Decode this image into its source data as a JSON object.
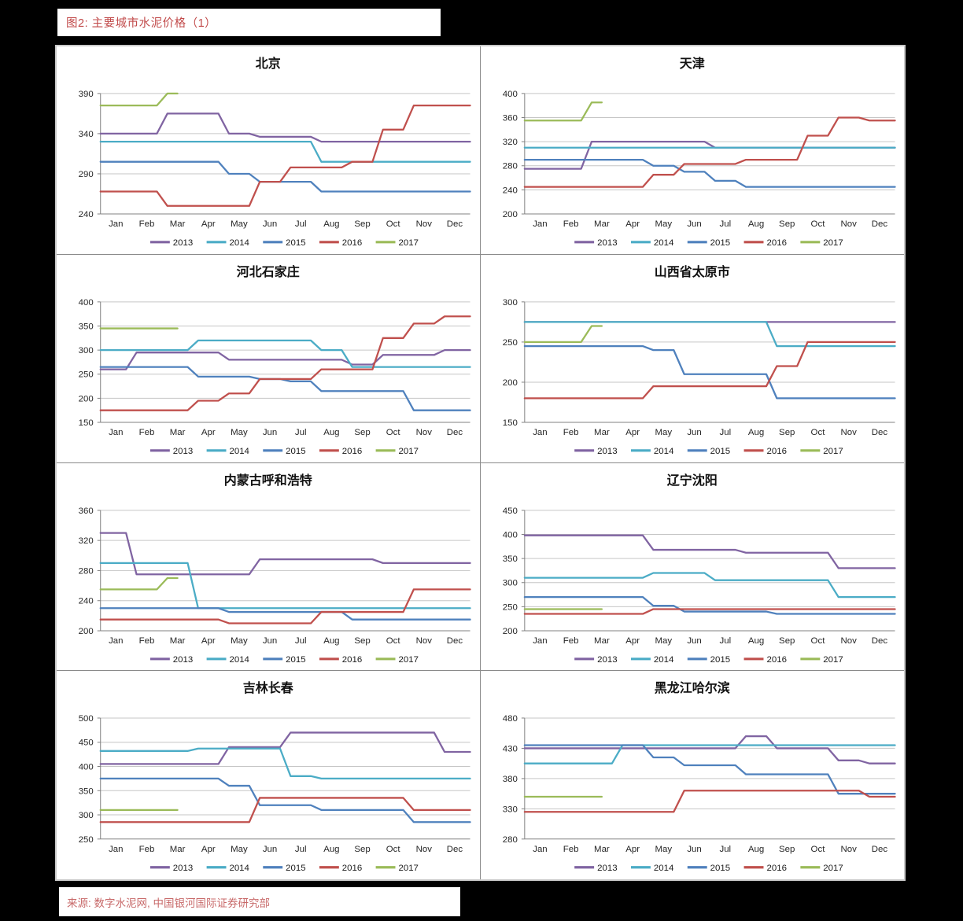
{
  "page": {
    "figure_title": "图2: 主要城市水泥价格（1）",
    "source": "来源: 数字水泥网, 中国银河国际证券研究部"
  },
  "months": [
    "Jan",
    "Feb",
    "Mar",
    "Apr",
    "May",
    "Jun",
    "Jul",
    "Aug",
    "Sep",
    "Oct",
    "Nov",
    "Dec"
  ],
  "years": [
    "2013",
    "2014",
    "2015",
    "2016",
    "2017"
  ],
  "colors": {
    "2013": "#8064A2",
    "2014": "#4BACC6",
    "2015": "#4F81BD",
    "2016": "#C0504D",
    "2017": "#9BBB59",
    "gridline": "#c6c6c6",
    "axis": "#808080",
    "tick_text": "#262626"
  },
  "chart_data": [
    {
      "type": "line",
      "title": "北京",
      "xlabel": "",
      "ylabel": "",
      "ylim": [
        240,
        390
      ],
      "yticks": [
        240,
        290,
        340,
        390
      ],
      "series": [
        {
          "name": "2013",
          "values": [
            340,
            340,
            365,
            365,
            340,
            336,
            336,
            330,
            330,
            330,
            330,
            330
          ]
        },
        {
          "name": "2014",
          "values": [
            330,
            330,
            330,
            330,
            330,
            330,
            330,
            305,
            305,
            305,
            305,
            305
          ]
        },
        {
          "name": "2015",
          "values": [
            305,
            305,
            305,
            305,
            290,
            280,
            280,
            268,
            268,
            268,
            268,
            268
          ]
        },
        {
          "name": "2016",
          "values": [
            268,
            268,
            250,
            250,
            250,
            280,
            298,
            298,
            305,
            345,
            375,
            375
          ]
        },
        {
          "name": "2017",
          "values": [
            375,
            375,
            390
          ]
        }
      ]
    },
    {
      "type": "line",
      "title": "天津",
      "xlabel": "",
      "ylabel": "",
      "ylim": [
        200,
        400
      ],
      "yticks": [
        200,
        240,
        280,
        320,
        360,
        400
      ],
      "series": [
        {
          "name": "2013",
          "values": [
            275,
            275,
            320,
            320,
            320,
            320,
            310,
            310,
            310,
            310,
            310,
            310
          ]
        },
        {
          "name": "2014",
          "values": [
            310,
            310,
            310,
            310,
            310,
            310,
            310,
            310,
            310,
            310,
            310,
            310
          ]
        },
        {
          "name": "2015",
          "values": [
            290,
            290,
            290,
            290,
            280,
            270,
            255,
            245,
            245,
            245,
            245,
            245
          ]
        },
        {
          "name": "2016",
          "values": [
            245,
            245,
            245,
            245,
            265,
            283,
            283,
            290,
            290,
            330,
            360,
            355
          ]
        },
        {
          "name": "2017",
          "values": [
            355,
            355,
            385
          ]
        }
      ]
    },
    {
      "type": "line",
      "title": "河北石家庄",
      "xlabel": "",
      "ylabel": "",
      "ylim": [
        150,
        400
      ],
      "yticks": [
        150,
        200,
        250,
        300,
        350,
        400
      ],
      "series": [
        {
          "name": "2013",
          "values": [
            260,
            295,
            295,
            295,
            280,
            280,
            280,
            280,
            270,
            290,
            290,
            300
          ]
        },
        {
          "name": "2014",
          "values": [
            300,
            300,
            300,
            320,
            320,
            320,
            320,
            300,
            265,
            265,
            265,
            265
          ]
        },
        {
          "name": "2015",
          "values": [
            265,
            265,
            265,
            245,
            245,
            240,
            235,
            215,
            215,
            215,
            175,
            175
          ]
        },
        {
          "name": "2016",
          "values": [
            175,
            175,
            175,
            195,
            210,
            240,
            240,
            260,
            260,
            325,
            355,
            370
          ]
        },
        {
          "name": "2017",
          "values": [
            345,
            345,
            345
          ]
        }
      ]
    },
    {
      "type": "line",
      "title": "山西省太原市",
      "xlabel": "",
      "ylabel": "",
      "ylim": [
        150,
        300
      ],
      "yticks": [
        150,
        200,
        250,
        300
      ],
      "series": [
        {
          "name": "2013",
          "values": [
            275,
            275,
            275,
            275,
            275,
            275,
            275,
            275,
            275,
            275,
            275,
            275
          ]
        },
        {
          "name": "2014",
          "values": [
            275,
            275,
            275,
            275,
            275,
            275,
            275,
            275,
            245,
            245,
            245,
            245
          ]
        },
        {
          "name": "2015",
          "values": [
            245,
            245,
            245,
            245,
            240,
            210,
            210,
            210,
            180,
            180,
            180,
            180
          ]
        },
        {
          "name": "2016",
          "values": [
            180,
            180,
            180,
            180,
            195,
            195,
            195,
            195,
            220,
            250,
            250,
            250
          ]
        },
        {
          "name": "2017",
          "values": [
            250,
            250,
            270
          ]
        }
      ]
    },
    {
      "type": "line",
      "title": "内蒙古呼和浩特",
      "xlabel": "",
      "ylabel": "",
      "ylim": [
        200,
        360
      ],
      "yticks": [
        200,
        240,
        280,
        320,
        360
      ],
      "series": [
        {
          "name": "2013",
          "values": [
            330,
            275,
            275,
            275,
            275,
            295,
            295,
            295,
            295,
            290,
            290,
            290
          ]
        },
        {
          "name": "2014",
          "values": [
            290,
            290,
            290,
            230,
            230,
            230,
            230,
            230,
            230,
            230,
            230,
            230
          ]
        },
        {
          "name": "2015",
          "values": [
            230,
            230,
            230,
            230,
            225,
            225,
            225,
            225,
            215,
            215,
            215,
            215
          ]
        },
        {
          "name": "2016",
          "values": [
            215,
            215,
            215,
            215,
            210,
            210,
            210,
            225,
            225,
            225,
            255,
            255
          ]
        },
        {
          "name": "2017",
          "values": [
            255,
            255,
            270
          ]
        }
      ]
    },
    {
      "type": "line",
      "title": "辽宁沈阳",
      "xlabel": "",
      "ylabel": "",
      "ylim": [
        200,
        450
      ],
      "yticks": [
        200,
        250,
        300,
        350,
        400,
        450
      ],
      "series": [
        {
          "name": "2013",
          "values": [
            398,
            398,
            398,
            398,
            368,
            368,
            368,
            362,
            362,
            362,
            330,
            330
          ]
        },
        {
          "name": "2014",
          "values": [
            310,
            310,
            310,
            310,
            320,
            320,
            305,
            305,
            305,
            305,
            270,
            270
          ]
        },
        {
          "name": "2015",
          "values": [
            270,
            270,
            270,
            270,
            252,
            240,
            240,
            240,
            235,
            235,
            235,
            235
          ]
        },
        {
          "name": "2016",
          "values": [
            235,
            235,
            235,
            235,
            245,
            245,
            245,
            245,
            245,
            245,
            245,
            245
          ]
        },
        {
          "name": "2017",
          "values": [
            245,
            245,
            245
          ]
        }
      ]
    },
    {
      "type": "line",
      "title": "吉林长春",
      "xlabel": "",
      "ylabel": "",
      "ylim": [
        250,
        500
      ],
      "yticks": [
        250,
        300,
        350,
        400,
        450,
        500
      ],
      "series": [
        {
          "name": "2013",
          "values": [
            405,
            405,
            405,
            405,
            440,
            440,
            470,
            470,
            470,
            470,
            470,
            430
          ]
        },
        {
          "name": "2014",
          "values": [
            432,
            432,
            432,
            437,
            437,
            437,
            380,
            375,
            375,
            375,
            375,
            375
          ]
        },
        {
          "name": "2015",
          "values": [
            375,
            375,
            375,
            375,
            360,
            320,
            320,
            310,
            310,
            310,
            285,
            285
          ]
        },
        {
          "name": "2016",
          "values": [
            285,
            285,
            285,
            285,
            285,
            335,
            335,
            335,
            335,
            335,
            310,
            310
          ]
        },
        {
          "name": "2017",
          "values": [
            310,
            310,
            310
          ]
        }
      ]
    },
    {
      "type": "line",
      "title": "黑龙江哈尔滨",
      "xlabel": "",
      "ylabel": "",
      "ylim": [
        280,
        480
      ],
      "yticks": [
        280,
        330,
        380,
        430,
        480
      ],
      "series": [
        {
          "name": "2013",
          "values": [
            430,
            430,
            430,
            430,
            430,
            430,
            430,
            450,
            430,
            430,
            410,
            405
          ]
        },
        {
          "name": "2014",
          "values": [
            405,
            405,
            405,
            435,
            435,
            435,
            435,
            435,
            435,
            435,
            435,
            435
          ]
        },
        {
          "name": "2015",
          "values": [
            435,
            435,
            435,
            435,
            415,
            402,
            402,
            387,
            387,
            387,
            355,
            355
          ]
        },
        {
          "name": "2016",
          "values": [
            325,
            325,
            325,
            325,
            325,
            360,
            360,
            360,
            360,
            360,
            360,
            350
          ]
        },
        {
          "name": "2017",
          "values": [
            350,
            350,
            350
          ]
        }
      ]
    }
  ]
}
